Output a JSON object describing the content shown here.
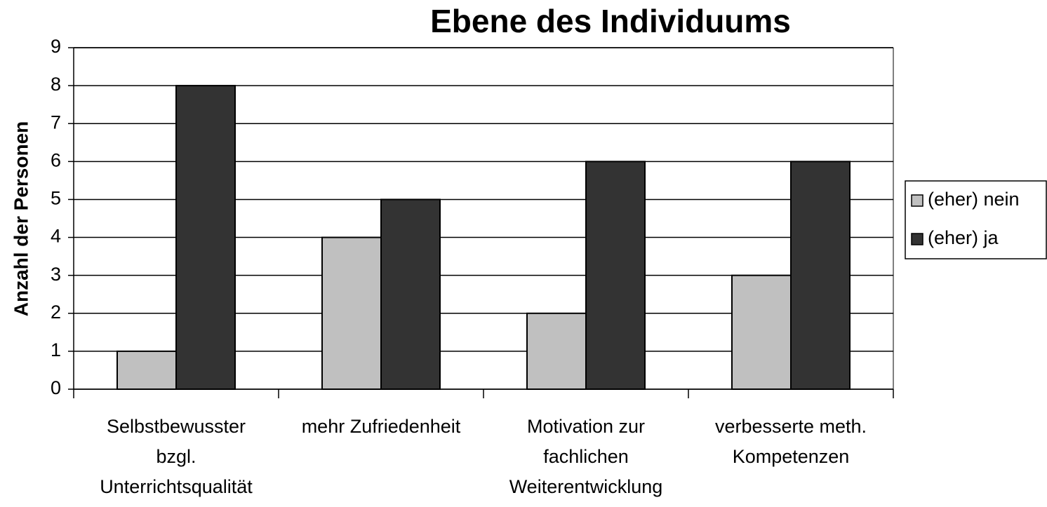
{
  "chart_data": {
    "type": "bar",
    "title": "Ebene des Individuums",
    "y_label": "Anzahl der Personen",
    "categories": [
      [
        "Selbstbewusster",
        "bzgl.",
        "Unterrichtsqualität"
      ],
      [
        "mehr Zufriedenheit"
      ],
      [
        "Motivation zur",
        "fachlichen",
        "Weiterentwicklung"
      ],
      [
        "verbesserte meth.",
        "Kompetenzen"
      ]
    ],
    "series": [
      {
        "name": "(eher) nein",
        "color": "#c0c0c0",
        "values": [
          1,
          4,
          2,
          3
        ]
      },
      {
        "name": "(eher) ja",
        "color": "#333333",
        "values": [
          8,
          5,
          6,
          6
        ]
      }
    ],
    "ylim": [
      0,
      9
    ],
    "yticks": [
      0,
      1,
      2,
      3,
      4,
      5,
      6,
      7,
      8,
      9
    ],
    "grid": true,
    "legend": "right"
  }
}
